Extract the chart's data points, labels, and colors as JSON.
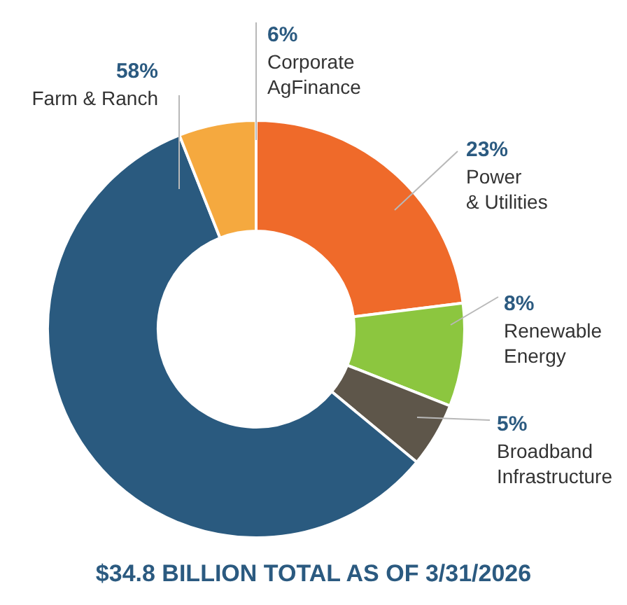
{
  "chart_data": {
    "type": "donut",
    "title": "$34.8 BILLION TOTAL AS OF 3/31/2026",
    "categories": [
      "Power & Utilities",
      "Renewable Energy",
      "Broadband Infrastructure",
      "Farm & Ranch",
      "Corporate AgFinance"
    ],
    "values": [
      23,
      8,
      5,
      58,
      6
    ],
    "colors": [
      "#ef6a2a",
      "#8cc63f",
      "#5e564a",
      "#2a5a7f",
      "#f5a93f"
    ],
    "value_labels": [
      "23%",
      "8%",
      "5%",
      "58%",
      "6%"
    ],
    "legend": false
  }
}
